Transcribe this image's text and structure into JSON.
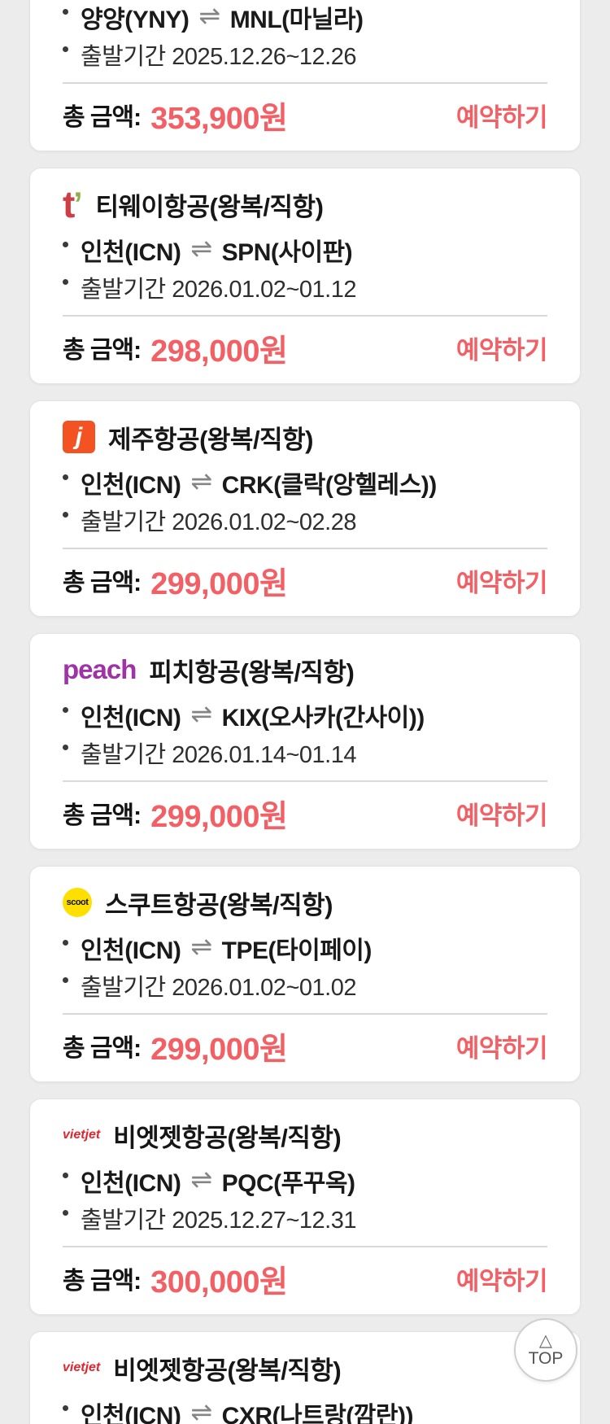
{
  "ui": {
    "price_label": "총 금액:",
    "book_label": "예약하기",
    "period_label": "출발기간",
    "swap_icon": "⇌",
    "top_button": {
      "arrow_icon": "△",
      "label": "TOP"
    },
    "colors": {
      "page_bg": "#ececec",
      "accent_red": "#f26065",
      "tway_red": "#cf3e46",
      "tway_green": "#8faf4a",
      "jeju_orange": "#f35322",
      "peach_purple": "#a032a8",
      "scoot_yellow": "#ffdf00",
      "vietjet_red": "#e0262e"
    }
  },
  "cards": [
    {
      "route_from": "양양(YNY)",
      "route_to": "MNL(마닐라)",
      "period_value": "2025.12.26~12.26",
      "price": "353,900원"
    },
    {
      "airline": "티웨이항공(왕복/직항)",
      "logo_main": "t",
      "logo_mark": "’",
      "route_from": "인천(ICN)",
      "route_to": "SPN(사이판)",
      "period_value": "2026.01.02~01.12",
      "price": "298,000원"
    },
    {
      "airline": "제주항공(왕복/직항)",
      "logo_text": "j",
      "route_from": "인천(ICN)",
      "route_to": "CRK(클락(앙헬레스))",
      "period_value": "2026.01.02~02.28",
      "price": "299,000원"
    },
    {
      "airline": "피치항공(왕복/직항)",
      "logo_text": "peach",
      "route_from": "인천(ICN)",
      "route_to": "KIX(오사카(간사이))",
      "period_value": "2026.01.14~01.14",
      "price": "299,000원"
    },
    {
      "airline": "스쿠트항공(왕복/직항)",
      "logo_text": "scoot",
      "route_from": "인천(ICN)",
      "route_to": "TPE(타이페이)",
      "period_value": "2026.01.02~01.02",
      "price": "299,000원"
    },
    {
      "airline": "비엣젯항공(왕복/직항)",
      "logo_text": "vietjet",
      "route_from": "인천(ICN)",
      "route_to": "PQC(푸꾸옥)",
      "period_value": "2025.12.27~12.31",
      "price": "300,000원"
    },
    {
      "airline": "비엣젯항공(왕복/직항)",
      "logo_text": "vietjet",
      "route_from": "인천(ICN)",
      "route_to": "CXR(나트랑(깜란))"
    }
  ]
}
